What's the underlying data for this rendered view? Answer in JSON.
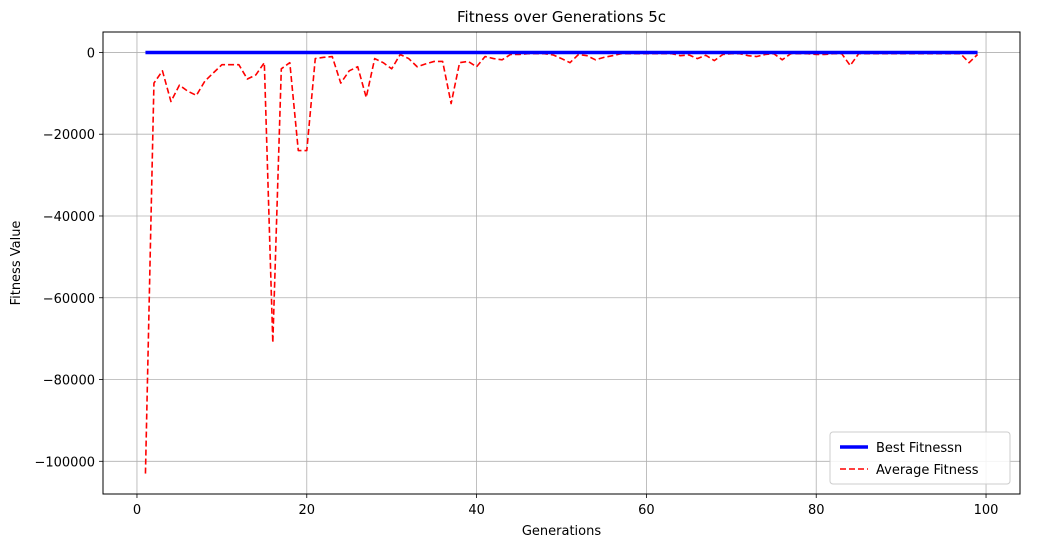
{
  "chart_data": {
    "type": "line",
    "title": "Fitness over Generations 5c",
    "xlabel": "Generations",
    "ylabel": "Fitness Value",
    "xlim": [
      -4,
      104
    ],
    "ylim": [
      -108000,
      5000
    ],
    "xticks": [
      0,
      20,
      40,
      60,
      80,
      100
    ],
    "yticks": [
      0,
      -20000,
      -40000,
      -60000,
      -80000,
      -100000
    ],
    "xtick_labels": [
      "0",
      "20",
      "40",
      "60",
      "80",
      "100"
    ],
    "ytick_labels": [
      "0",
      "−20000",
      "−40000",
      "−60000",
      "−80000",
      "−100000"
    ],
    "grid": true,
    "legend_position": "lower-right",
    "series": [
      {
        "name": "Best Fitnessn",
        "color": "#0000ff",
        "style": "solid",
        "x": [
          1,
          99
        ],
        "y": [
          0,
          0
        ]
      },
      {
        "name": "Average Fitness",
        "color": "#ff0000",
        "style": "dashed",
        "x": [
          1,
          2,
          3,
          4,
          5,
          6,
          7,
          8,
          9,
          10,
          11,
          12,
          13,
          14,
          15,
          16,
          17,
          18,
          19,
          20,
          21,
          22,
          23,
          24,
          25,
          26,
          27,
          28,
          29,
          30,
          31,
          32,
          33,
          34,
          35,
          36,
          37,
          38,
          39,
          40,
          41,
          42,
          43,
          44,
          45,
          46,
          47,
          48,
          49,
          50,
          51,
          52,
          53,
          54,
          55,
          56,
          57,
          58,
          59,
          60,
          61,
          62,
          63,
          64,
          65,
          66,
          67,
          68,
          69,
          70,
          71,
          72,
          73,
          74,
          75,
          76,
          77,
          78,
          79,
          80,
          81,
          82,
          83,
          84,
          85,
          86,
          87,
          88,
          89,
          90,
          91,
          92,
          93,
          94,
          95,
          96,
          97,
          98,
          99
        ],
        "y": [
          -103000,
          -7500,
          -4500,
          -12000,
          -8000,
          -9500,
          -10500,
          -7000,
          -5000,
          -3000,
          -3000,
          -3000,
          -6500,
          -5500,
          -2500,
          -71000,
          -4000,
          -2500,
          -24000,
          -24000,
          -1500,
          -1200,
          -1000,
          -7500,
          -4500,
          -3500,
          -11000,
          -1500,
          -2500,
          -4000,
          -500,
          -1500,
          -3500,
          -2800,
          -2200,
          -2200,
          -12500,
          -2500,
          -2200,
          -3500,
          -1000,
          -1500,
          -1800,
          -500,
          -500,
          -300,
          -300,
          -300,
          -600,
          -1500,
          -2500,
          -500,
          -800,
          -1800,
          -1200,
          -800,
          -300,
          -300,
          -300,
          -300,
          -300,
          -300,
          -300,
          -800,
          -600,
          -1500,
          -700,
          -2000,
          -500,
          -300,
          -300,
          -800,
          -1000,
          -500,
          -300,
          -1800,
          -300,
          -300,
          -300,
          -500,
          -500,
          -300,
          -300,
          -3200,
          -300,
          -300,
          -300,
          -300,
          -300,
          -300,
          -300,
          -300,
          -300,
          -300,
          -300,
          -300,
          -300,
          -2500,
          -500
        ]
      }
    ]
  }
}
